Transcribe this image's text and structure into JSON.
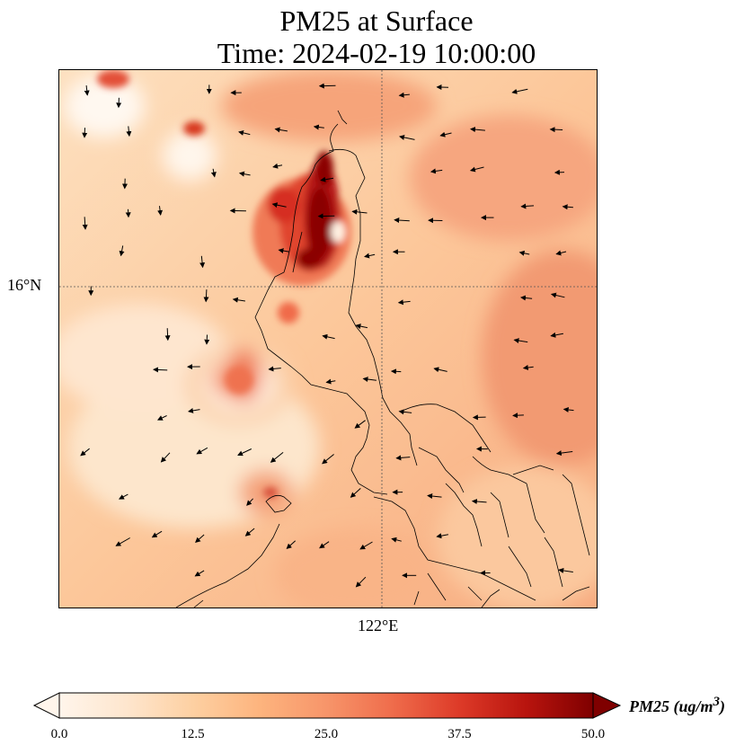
{
  "title": {
    "line1": "PM25 at Surface",
    "line2": "Time: 2024-02-19 10:00:00"
  },
  "map": {
    "lat_label": "16°N",
    "lon_label": "122°E",
    "field": "PM25",
    "colormap": [
      "#fff5eb",
      "#fee6ce",
      "#fdd0a2",
      "#fdae6b",
      "#fd8d3c",
      "#f16913",
      "#d94801",
      "#a63603",
      "#7f2704"
    ],
    "colormap_name": "OrRd",
    "hotspot_value_max": 50
  },
  "colorbar": {
    "label": "PM25 (ug/m",
    "label_sup": "3",
    "label_end": ")",
    "ticks": [
      "0.0",
      "12.5",
      "25.0",
      "37.5",
      "50.0"
    ],
    "min": 0,
    "max": 50,
    "extend": "both"
  }
}
